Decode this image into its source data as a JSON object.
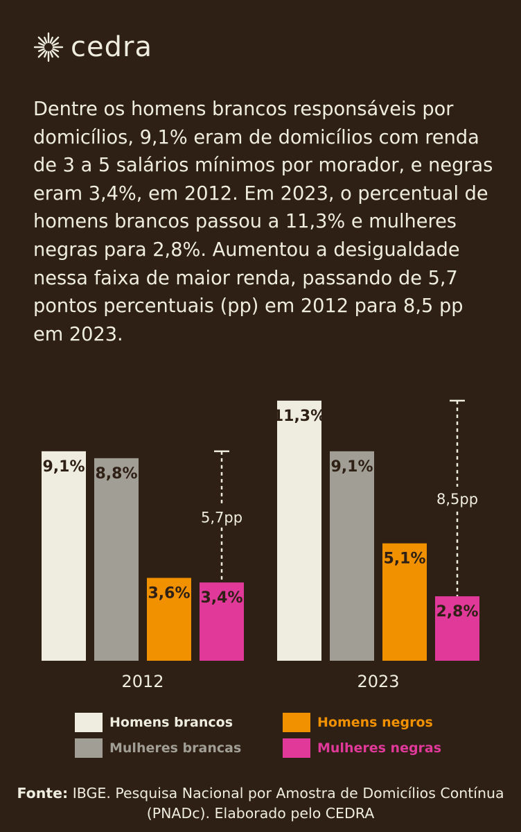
{
  "brand": {
    "name": "cedra",
    "logo_icon": "sun-burst-icon"
  },
  "intro_text": "Dentre os homens brancos responsáveis por domicílios, 9,1% eram de domicílios com renda de 3 a 5 salários mínimos por morador, e negras eram 3,4%, em 2012. Em 2023, o percentual de homens brancos passou a 11,3% e mulheres negras para 2,8%. Aumentou a desigualdade nessa faixa de maior renda, passando de 5,7 pontos percentuais (pp) em 2012 para 8,5 pp em 2023.",
  "chart_data": {
    "type": "bar",
    "categories": [
      "2012",
      "2023"
    ],
    "series": [
      {
        "name": "Homens brancos",
        "color": "#efece0",
        "values": [
          9.1,
          11.3
        ],
        "labels": [
          "9,1%",
          "11,3%"
        ]
      },
      {
        "name": "Mulheres brancas",
        "color": "#a09e95",
        "values": [
          8.8,
          9.1
        ],
        "labels": [
          "8,8%",
          "9,1%"
        ]
      },
      {
        "name": "Homens negros",
        "color": "#f29100",
        "values": [
          3.6,
          5.1
        ],
        "labels": [
          "3,6%",
          "5,1%"
        ]
      },
      {
        "name": "Mulheres negras",
        "color": "#e0399a",
        "values": [
          3.4,
          2.8
        ],
        "labels": [
          "3,4%",
          "2,8%"
        ]
      }
    ],
    "gaps": [
      {
        "category": "2012",
        "value": 5.7,
        "label": "5,7pp"
      },
      {
        "category": "2023",
        "value": 8.5,
        "label": "8,5pp"
      }
    ],
    "ylim": [
      0,
      11.3
    ],
    "grid": false,
    "legend_position": "bottom"
  },
  "source": {
    "label": "Fonte:",
    "text": " IBGE. Pesquisa Nacional por Amostra de Domicílios Contínua (PNADc). Elaborado pelo CEDRA"
  }
}
